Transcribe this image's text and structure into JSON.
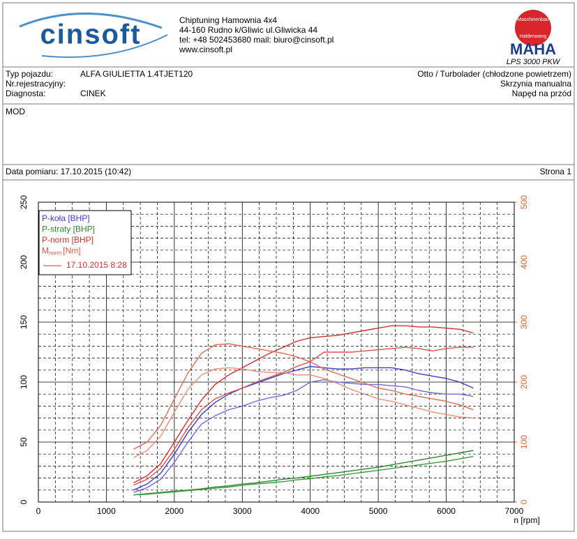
{
  "header": {
    "logo": "cinsoft",
    "lines": [
      "Chiptuning  Hamownia 4x4",
      "44-160 Rudno k/Gliwic ul.Gliwicka 44",
      "tel: +48 502453680  mail: biuro@cinsoft.pl",
      "www.cinsoft.pl"
    ],
    "maha_ring": [
      "Maschinenbau",
      "Haldenwang"
    ],
    "maha": "MAHA",
    "model": "LPS 3000 PKW"
  },
  "vehicle": {
    "left": [
      [
        "Typ pojazdu:",
        "ALFA GIULIETTA 1.4TJET120"
      ],
      [
        "Nr.rejestracyjny:"
      ],
      [
        "Diagnosta:",
        "CINEK"
      ]
    ],
    "right": [
      "Otto / Turbolader (chłodzone powietrzem)",
      "Skrzynia manualna",
      "Napęd na przód"
    ]
  },
  "mod": "MOD",
  "date": "Data pomiaru: 17.10.2015 (10:42)",
  "page": "Strona 1",
  "chart_data": {
    "type": "line",
    "xlabel": "n [rpm]",
    "legend_date": "17.10.2015 8:28",
    "legend": "upper-left",
    "grid": true,
    "xlim": [
      0,
      7000
    ],
    "xticks": [
      0,
      1000,
      2000,
      3000,
      4000,
      5000,
      6000,
      7000
    ],
    "ylim": [
      0,
      250
    ],
    "yticks": [
      0,
      50,
      100,
      150,
      200,
      250
    ],
    "y2lim": [
      0,
      500
    ],
    "y2ticks": [
      0,
      100,
      200,
      300,
      400,
      500
    ],
    "y2color": "#e0602c",
    "x": [
      1400,
      1600,
      1800,
      2000,
      2200,
      2400,
      2600,
      2800,
      3000,
      3200,
      3400,
      3600,
      3800,
      4000,
      4200,
      4400,
      4600,
      4800,
      5000,
      5200,
      5400,
      5600,
      5800,
      6000,
      6200,
      6400
    ],
    "series": [
      {
        "name": "P-koła [BHP]",
        "color": "#3c3cc8",
        "runs": [
          {
            "color": "#3c3cc8",
            "values": [
              10,
              15,
              24,
              40,
              58,
              73,
              83,
              90,
              95,
              99,
              103,
              107,
              110,
              113,
              112,
              111,
              111,
              112,
              112,
              112,
              110,
              107,
              105,
              103,
              100,
              95
            ]
          },
          {
            "color": "#6b6bdc",
            "values": [
              8,
              12,
              19,
              33,
              50,
              65,
              72,
              77,
              80,
              84,
              87,
              89,
              93,
              100,
              102,
              100,
              99,
              98,
              98,
              97,
              96,
              93,
              91,
              90,
              90,
              88
            ]
          }
        ]
      },
      {
        "name": "P-straty [BHP]",
        "color": "#2a8a2a",
        "runs": [
          {
            "color": "#2a8a2a",
            "values": [
              6,
              7,
              8,
              9,
              10,
              11,
              12.5,
              13.5,
              15,
              16,
              17.5,
              19,
              20,
              21.5,
              23,
              24.5,
              26,
              27.5,
              29,
              31,
              33,
              35,
              37,
              39,
              41,
              43
            ]
          },
          {
            "color": "#3c9c3c",
            "values": [
              6,
              6.5,
              7.5,
              8.5,
              9.5,
              10.5,
              11.5,
              12.5,
              14,
              15,
              16,
              17,
              18.5,
              19.5,
              21,
              22,
              23.5,
              25,
              26.5,
              28,
              29.5,
              31,
              32.5,
              34,
              36,
              38
            ]
          }
        ]
      },
      {
        "name": "P-norm [BHP]",
        "color": "#d03030",
        "runs": [
          {
            "color": "#d03030",
            "values": [
              16,
              22,
              32,
              50,
              68,
              85,
              98,
              106,
              112,
              118,
              124,
              129,
              134,
              137,
              138,
              139,
              141,
              143,
              145,
              147,
              147,
              146,
              146,
              145,
              144,
              141
            ]
          },
          {
            "color": "#dc5050",
            "values": [
              14,
              19,
              28,
              44,
              62,
              77,
              86,
              91,
              95,
              100,
              104,
              108,
              113,
              117,
              125,
              125,
              125,
              126,
              127,
              128,
              129,
              128,
              126,
              128,
              129,
              129
            ]
          }
        ]
      },
      {
        "name": "M",
        "subscript": "norm",
        "unit": "[Nm]",
        "axis": "y2",
        "color": "#e05a3c",
        "runs": [
          {
            "color": "#e06a50",
            "values": [
              88,
              100,
              128,
              172,
              215,
              248,
              262,
              264,
              260,
              256,
              252,
              248,
              242,
              234,
              222,
              214,
              206,
              198,
              190,
              186,
              180,
              176,
              172,
              168,
              162,
              154
            ]
          },
          {
            "color": "#eb8f78",
            "values": [
              74,
              86,
              110,
              150,
              188,
              212,
              222,
              224,
              222,
              218,
              216,
              216,
              212,
              212,
              206,
              198,
              188,
              180,
              172,
              168,
              162,
              156,
              150,
              146,
              142,
              140
            ]
          }
        ]
      }
    ]
  }
}
